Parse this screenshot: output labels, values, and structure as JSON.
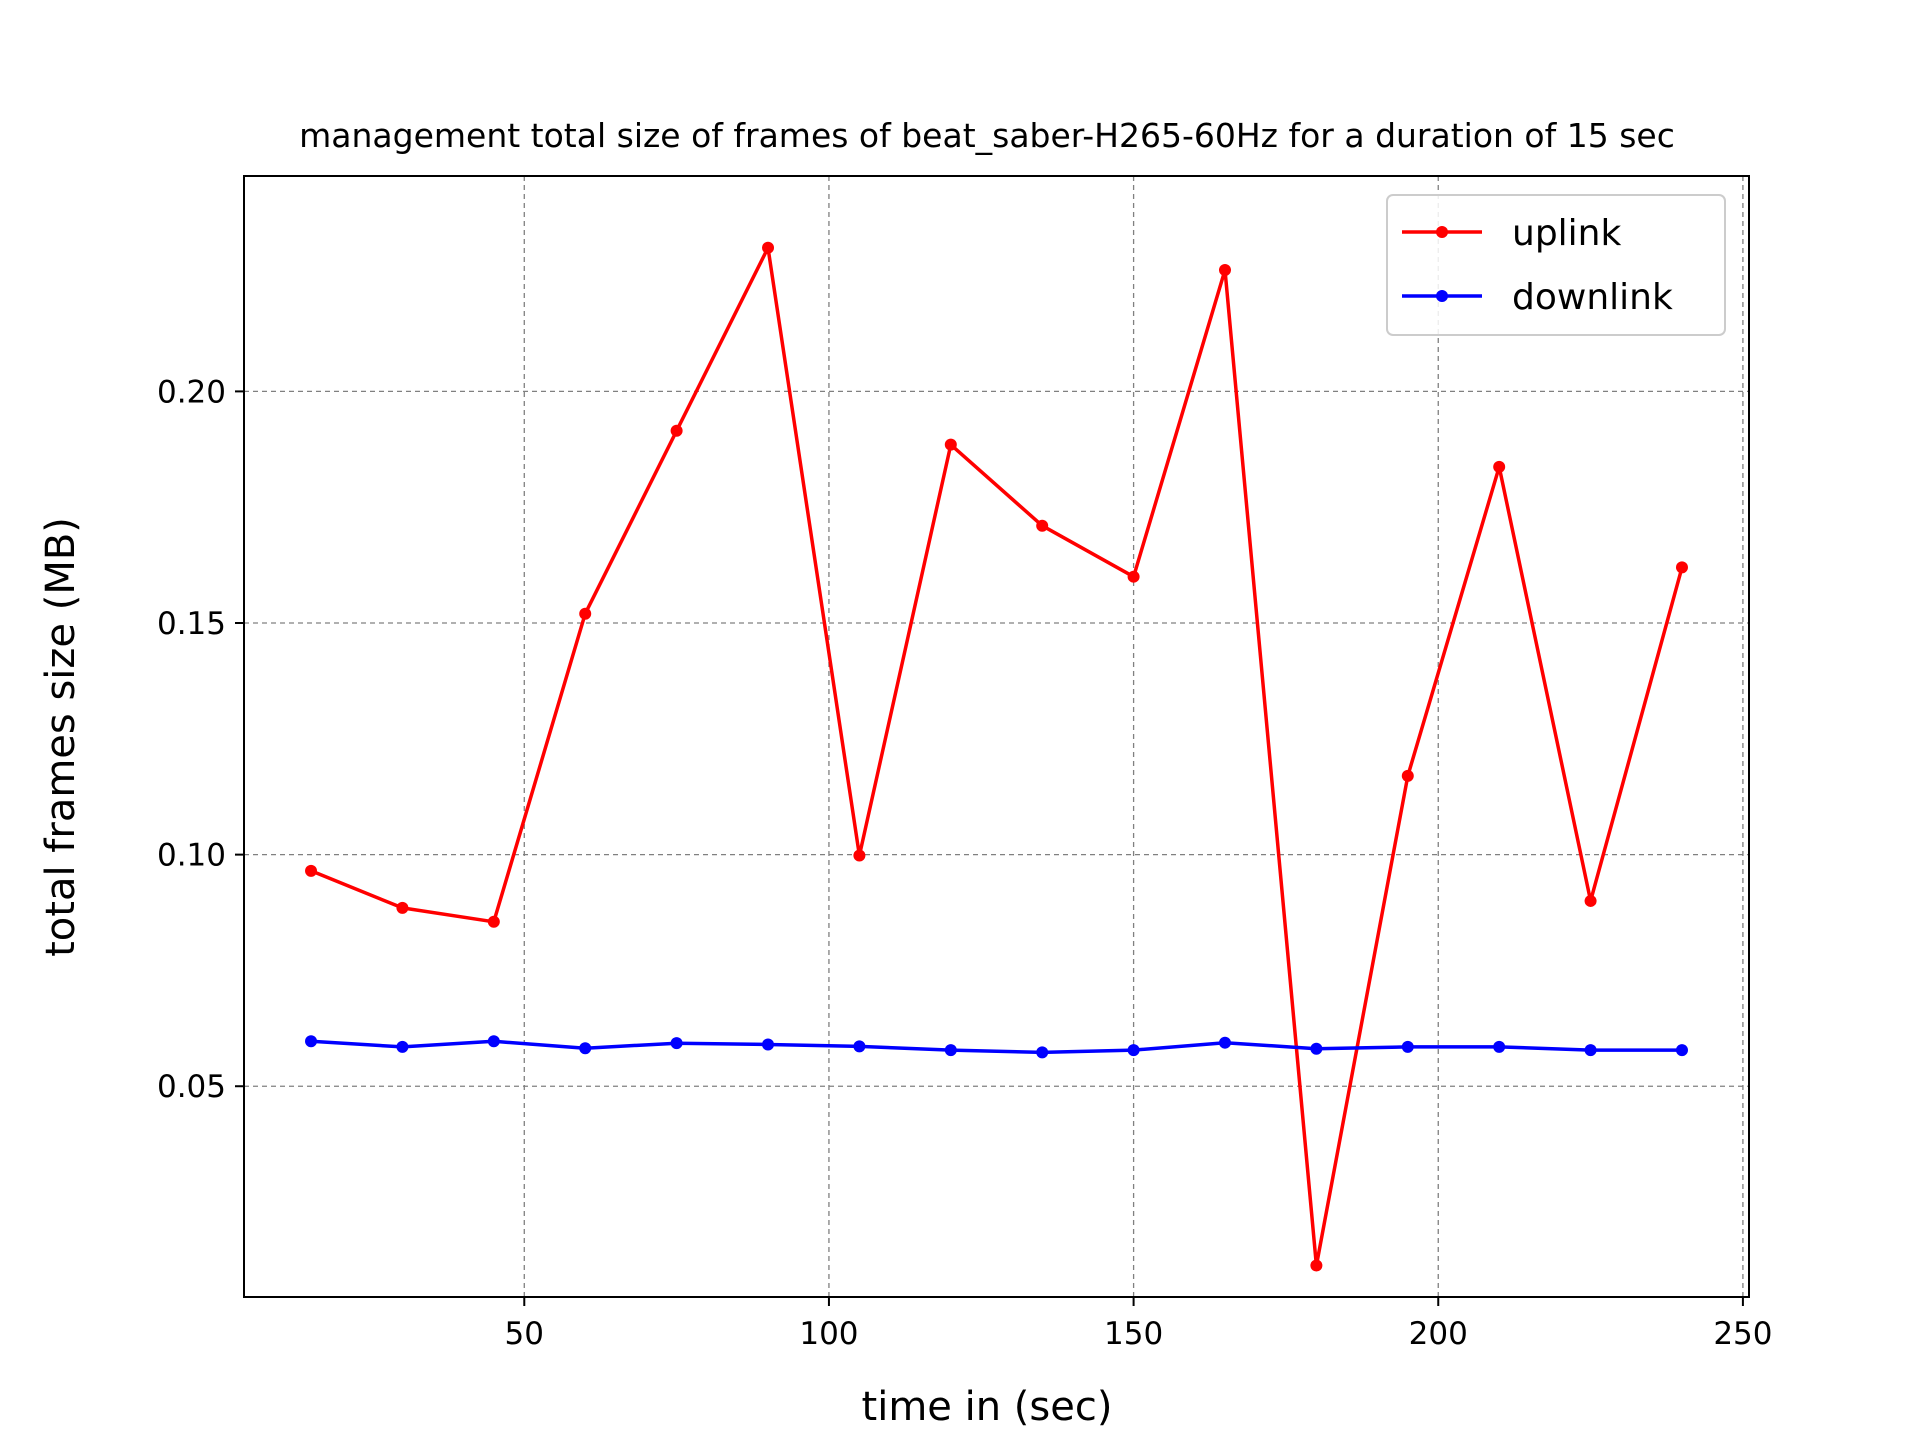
{
  "chart_data": {
    "type": "line",
    "title": "management total size of frames of beat_saber-H265-60Hz for a duration of 15 sec",
    "xlabel": "time in (sec)",
    "ylabel": "total frames size (MB)",
    "xlim": [
      4,
      251
    ],
    "ylim": [
      0.0045,
      0.2465
    ],
    "xticks": [
      50,
      100,
      150,
      200,
      250
    ],
    "xtick_labels": [
      "50",
      "100",
      "150",
      "200",
      "250"
    ],
    "yticks": [
      0.05,
      0.1,
      0.15,
      0.2
    ],
    "ytick_labels": [
      "0.05",
      "0.10",
      "0.15",
      "0.20"
    ],
    "grid": true,
    "legend_position": "top-right",
    "x": [
      15,
      30,
      45,
      60,
      75,
      90,
      105,
      120,
      135,
      150,
      165,
      180,
      195,
      210,
      225,
      240
    ],
    "series": [
      {
        "name": "uplink",
        "color": "#ff0000",
        "values": [
          0.0965,
          0.0885,
          0.0855,
          0.152,
          0.1915,
          0.231,
          0.0998,
          0.1885,
          0.171,
          0.16,
          0.2262,
          0.0113,
          0.117,
          0.1837,
          0.09,
          0.162
        ]
      },
      {
        "name": "downlink",
        "color": "#0000ff",
        "values": [
          0.0597,
          0.0585,
          0.0597,
          0.0582,
          0.0593,
          0.059,
          0.0586,
          0.0578,
          0.0573,
          0.0578,
          0.0594,
          0.0581,
          0.0585,
          0.0585,
          0.0578,
          0.0578
        ]
      }
    ]
  }
}
